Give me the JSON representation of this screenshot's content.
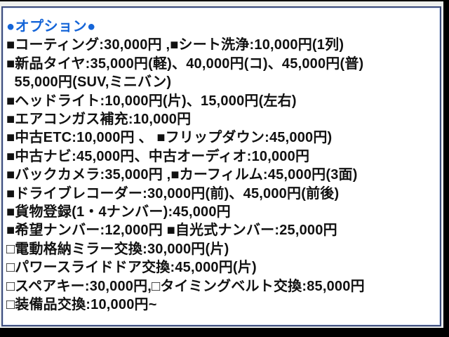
{
  "colors": {
    "header_blue": "#1565d8",
    "text": "#111111",
    "card_bg": "#ffffff",
    "border": "#3d4c7c",
    "border_inner": "#d3dff2",
    "photo_bg": "#000000",
    "margin_light": "#eef0ee"
  },
  "panel": {
    "header": "●オプション●",
    "lines": [
      "■コーティング:30,000円 ,■シート洗浄:10,000円(1列)",
      "■新品タイヤ:35,000円(軽)、40,000円(コ)、45,000円(普)",
      "  55,000円(SUV,ミニバン)",
      "■ヘッドライト:10,000円(片)、15,000円(左右)",
      "■エアコンガス補充:10,000円",
      "■中古ETC:10,000円 、 ■フリップダウン:45,000円)",
      "■中古ナビ:45,000円、中古オーディオ:10,000円",
      "■バックカメラ:35,000円 ,■カーフィルム:45,000円(3面)",
      "■ドライブレコーダー:30,000円(前)、45,000円(前後)",
      "■貨物登録(1・4ナンバー):45,000円",
      "■希望ナンバー:12,000円 ■自光式ナンバー:25,000円",
      "□電動格納ミラー交換:30,000円(片)",
      "□パワースライドドア交換:45,000円(片)",
      "□スペアキー:30,000円,□タイミングベルト交換:85,000円",
      "□装備品交換:10,000円~"
    ]
  }
}
